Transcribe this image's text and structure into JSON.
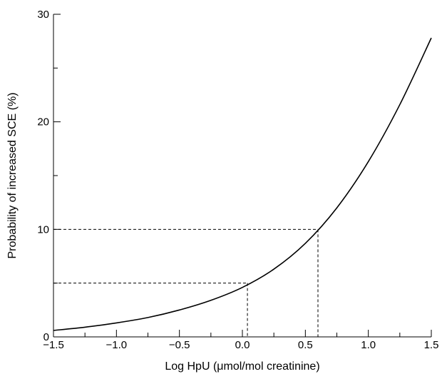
{
  "chart_data": {
    "type": "line",
    "title": "",
    "xlabel": "Log HpU (μmol/mol creatinine)",
    "ylabel": "Probability of increased SCE (%)",
    "xlim": [
      -1.5,
      1.5
    ],
    "ylim": [
      0,
      30
    ],
    "x_ticks": [
      -1.5,
      -1.0,
      -0.5,
      0.0,
      0.5,
      1.0,
      1.5
    ],
    "x_tick_labels": [
      "−1.5",
      "−1.0",
      "−0.5",
      "0.0",
      "0.5",
      "1.0",
      "1.5"
    ],
    "y_ticks": [
      0,
      10,
      20,
      30
    ],
    "y_tick_labels": [
      "0",
      "10",
      "20",
      "30"
    ],
    "grid": false,
    "legend": "none",
    "series": [
      {
        "x": [
          -1.5,
          -1.25,
          -1.0,
          -0.75,
          -0.5,
          -0.25,
          0.0,
          0.25,
          0.5,
          0.75,
          1.0,
          1.25,
          1.5
        ],
        "y": [
          0.6,
          0.9,
          1.3,
          1.8,
          2.5,
          3.4,
          4.6,
          6.3,
          8.7,
          12.0,
          16.3,
          21.6,
          27.8
        ],
        "color": "#000000"
      }
    ],
    "reference_lines": [
      {
        "x": 0.04,
        "y": 5
      },
      {
        "x": 0.6,
        "y": 10
      }
    ]
  }
}
